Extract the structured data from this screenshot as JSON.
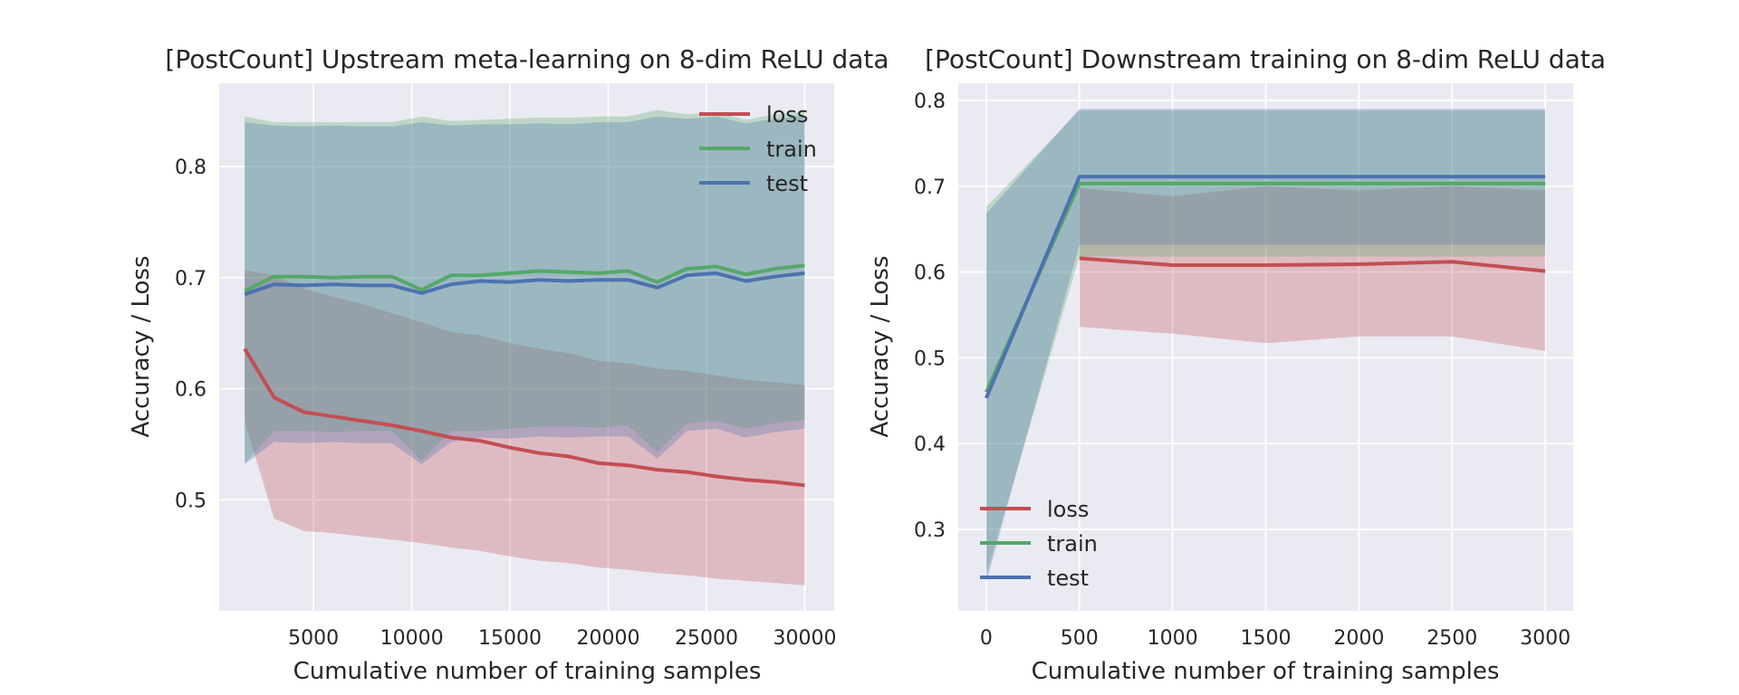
{
  "chart_data": [
    {
      "type": "line",
      "title": "[PostCount] Upstream meta-learning on 8-dim ReLU data",
      "xlabel": "Cumulative number of training samples",
      "ylabel": "Accuracy / Loss",
      "xlim": [
        200,
        31500
      ],
      "ylim": [
        0.4,
        0.875
      ],
      "xticks": [
        5000,
        10000,
        15000,
        20000,
        25000,
        30000
      ],
      "yticks": [
        0.5,
        0.6,
        0.7,
        0.8
      ],
      "grid": true,
      "legend": "top-right",
      "x": [
        1500,
        3000,
        4500,
        6000,
        7500,
        9000,
        10500,
        12000,
        13500,
        15000,
        16500,
        18000,
        19500,
        21000,
        22500,
        24000,
        25500,
        27000,
        28500,
        30000
      ],
      "series": [
        {
          "name": "loss",
          "color": "#c44e52",
          "values": [
            0.636,
            0.592,
            0.579,
            0.575,
            0.571,
            0.567,
            0.562,
            0.556,
            0.553,
            0.547,
            0.542,
            0.539,
            0.533,
            0.531,
            0.527,
            0.525,
            0.521,
            0.518,
            0.516,
            0.513
          ],
          "lower": [
            0.57,
            0.483,
            0.472,
            0.47,
            0.467,
            0.464,
            0.461,
            0.457,
            0.454,
            0.449,
            0.445,
            0.443,
            0.439,
            0.437,
            0.434,
            0.432,
            0.429,
            0.427,
            0.425,
            0.423
          ],
          "upper": [
            0.707,
            0.702,
            0.69,
            0.683,
            0.676,
            0.668,
            0.66,
            0.651,
            0.648,
            0.641,
            0.636,
            0.632,
            0.625,
            0.623,
            0.618,
            0.616,
            0.612,
            0.608,
            0.606,
            0.603
          ]
        },
        {
          "name": "train",
          "color": "#55a868",
          "values": [
            0.688,
            0.701,
            0.701,
            0.7,
            0.701,
            0.701,
            0.689,
            0.702,
            0.702,
            0.704,
            0.706,
            0.705,
            0.704,
            0.706,
            0.696,
            0.708,
            0.71,
            0.703,
            0.708,
            0.711
          ],
          "lower": [
            0.533,
            0.562,
            0.562,
            0.561,
            0.562,
            0.562,
            0.535,
            0.562,
            0.562,
            0.564,
            0.566,
            0.566,
            0.565,
            0.567,
            0.543,
            0.569,
            0.571,
            0.564,
            0.569,
            0.572
          ],
          "upper": [
            0.845,
            0.84,
            0.84,
            0.84,
            0.84,
            0.84,
            0.845,
            0.841,
            0.842,
            0.843,
            0.844,
            0.844,
            0.845,
            0.845,
            0.851,
            0.847,
            0.849,
            0.842,
            0.847,
            0.85
          ]
        },
        {
          "name": "test",
          "color": "#4c72b0",
          "values": [
            0.685,
            0.694,
            0.693,
            0.694,
            0.693,
            0.693,
            0.686,
            0.694,
            0.697,
            0.696,
            0.698,
            0.697,
            0.698,
            0.698,
            0.691,
            0.702,
            0.704,
            0.697,
            0.701,
            0.704
          ],
          "lower": [
            0.532,
            0.552,
            0.551,
            0.552,
            0.551,
            0.551,
            0.532,
            0.552,
            0.556,
            0.555,
            0.557,
            0.556,
            0.557,
            0.557,
            0.537,
            0.562,
            0.564,
            0.556,
            0.561,
            0.564
          ],
          "upper": [
            0.84,
            0.837,
            0.836,
            0.837,
            0.836,
            0.836,
            0.84,
            0.837,
            0.838,
            0.838,
            0.839,
            0.838,
            0.84,
            0.84,
            0.845,
            0.843,
            0.845,
            0.839,
            0.843,
            0.846
          ]
        }
      ]
    },
    {
      "type": "line",
      "title": "[PostCount] Downstream training on 8-dim ReLU data",
      "xlabel": "Cumulative number of training samples",
      "ylabel": "Accuracy / Loss",
      "xlim": [
        -150,
        3150
      ],
      "ylim": [
        0.205,
        0.82
      ],
      "xticks": [
        0,
        500,
        1000,
        1500,
        2000,
        2500,
        3000
      ],
      "yticks": [
        0.3,
        0.4,
        0.5,
        0.6,
        0.7,
        0.8
      ],
      "grid": true,
      "legend": "bottom-left",
      "x": [
        0,
        500,
        1000,
        1500,
        2000,
        2500,
        3000
      ],
      "series": [
        {
          "name": "loss",
          "color": "#c44e52",
          "values": [
            null,
            0.616,
            0.608,
            0.608,
            0.609,
            0.612,
            0.601
          ],
          "lower": [
            null,
            0.536,
            0.528,
            0.517,
            0.525,
            0.525,
            0.508
          ],
          "upper": [
            null,
            0.698,
            0.688,
            0.7,
            0.695,
            0.7,
            0.695
          ]
        },
        {
          "name": "train",
          "color": "#55a868",
          "values": [
            0.46,
            0.703,
            0.703,
            0.703,
            0.703,
            0.703,
            0.703
          ],
          "lower": [
            0.247,
            0.618,
            0.618,
            0.618,
            0.618,
            0.618,
            0.618
          ],
          "upper": [
            0.676,
            0.788,
            0.788,
            0.788,
            0.788,
            0.788,
            0.788
          ]
        },
        {
          "name": "test",
          "color": "#4c72b0",
          "values": [
            0.453,
            0.711,
            0.711,
            0.711,
            0.711,
            0.711,
            0.711
          ],
          "lower": [
            0.238,
            0.632,
            0.632,
            0.632,
            0.632,
            0.632,
            0.632
          ],
          "upper": [
            0.668,
            0.79,
            0.79,
            0.79,
            0.79,
            0.79,
            0.79
          ]
        }
      ]
    }
  ]
}
